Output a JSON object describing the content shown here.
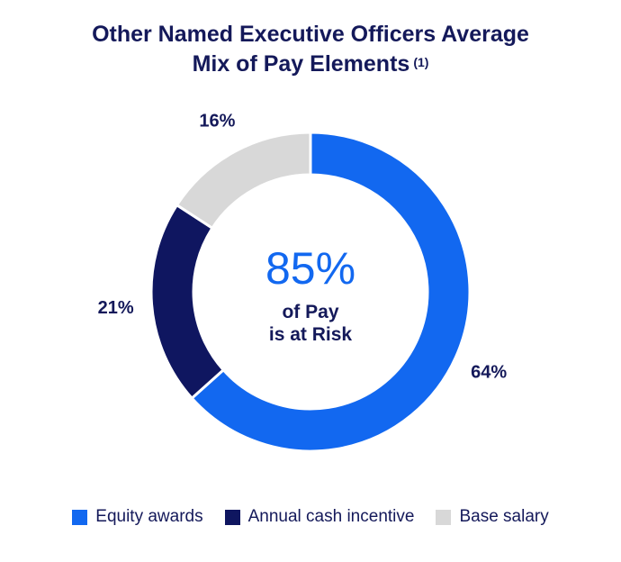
{
  "title": {
    "line1": "Other Named Executive Officers Average",
    "line2": "Mix of Pay Elements",
    "footnote": "(1)"
  },
  "center": {
    "value": "85%",
    "line1": "of Pay",
    "line2": "is at Risk"
  },
  "colors": {
    "equity": "#1268f0",
    "cash": "#0f1660",
    "base": "#d8d8d8",
    "title": "#14195a",
    "center_value": "#1268f0"
  },
  "chart_data": {
    "type": "pie",
    "variant": "donut",
    "title": "Other Named Executive Officers Average Mix of Pay Elements (1)",
    "center_label": "85% of Pay is at Risk",
    "slices": [
      {
        "name": "Equity awards",
        "value": 64,
        "label": "64%",
        "color": "#1268f0"
      },
      {
        "name": "Annual cash incentive",
        "value": 21,
        "label": "21%",
        "color": "#0f1660"
      },
      {
        "name": "Base salary",
        "value": 16,
        "label": "16%",
        "color": "#d8d8d8"
      }
    ],
    "legend_position": "bottom"
  },
  "legend": [
    {
      "label": "Equity awards",
      "color": "#1268f0"
    },
    {
      "label": "Annual cash incentive",
      "color": "#0f1660"
    },
    {
      "label": "Base salary",
      "color": "#d8d8d8"
    }
  ]
}
